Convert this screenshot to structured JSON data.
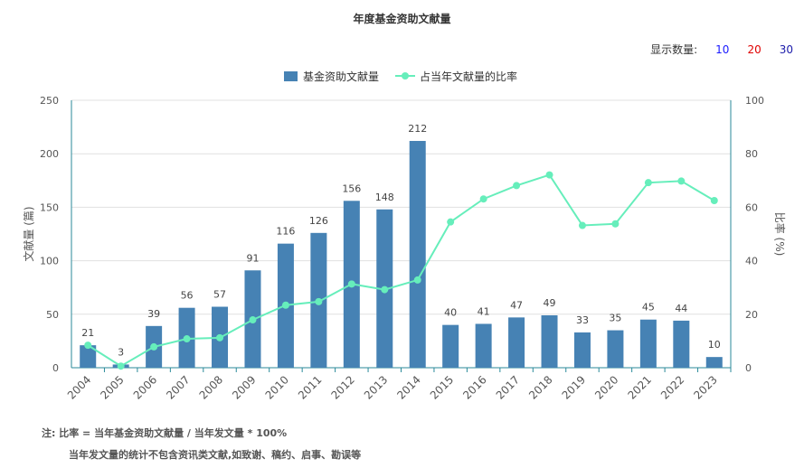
{
  "page_title": "年度基金资助文献量",
  "count_selector": {
    "label": "显示数量:",
    "options": [
      {
        "label": "10",
        "color": "#1a1aff"
      },
      {
        "label": "20",
        "color": "#e00000"
      },
      {
        "label": "30",
        "color": "#1a1aaa"
      }
    ]
  },
  "notes": {
    "line1": "注:  比率 = 当年基金资助文献量 / 当年发文量 * 100%",
    "line2": "当年发文量的统计不包含资讯类文献,如致谢、稿约、启事、勘误等"
  },
  "chart_data": {
    "type": "bar",
    "title": "年度基金资助文献量",
    "categories": [
      "2004",
      "2005",
      "2006",
      "2007",
      "2008",
      "2009",
      "2010",
      "2011",
      "2012",
      "2013",
      "2014",
      "2015",
      "2016",
      "2017",
      "2018",
      "2019",
      "2020",
      "2021",
      "2022",
      "2023"
    ],
    "series": [
      {
        "name": "基金资助文献量",
        "type": "bar",
        "axis": "left",
        "color": "#4682b4",
        "values": [
          21,
          3,
          39,
          56,
          57,
          91,
          116,
          126,
          156,
          148,
          212,
          40,
          41,
          47,
          49,
          33,
          35,
          45,
          44,
          10
        ],
        "labels": [
          "21",
          "3",
          "39",
          "56",
          "57",
          "91",
          "116",
          "126",
          "156",
          "148",
          "212",
          "40",
          "41",
          "47",
          "49",
          "33",
          "35",
          "45",
          "44",
          "10"
        ]
      },
      {
        "name": "占当年文献量的比率",
        "type": "line",
        "axis": "right",
        "color": "#66eebb",
        "values": [
          8.4,
          0.6,
          7.8,
          10.8,
          11.2,
          17.9,
          23.4,
          24.7,
          31.3,
          29.2,
          32.8,
          54.5,
          63.1,
          68.1,
          72.1,
          53.2,
          53.8,
          69.2,
          69.8,
          62.5
        ]
      }
    ],
    "ylabel": "文献量 (篇)",
    "ylim": [
      0,
      250
    ],
    "yticks": [
      "0",
      "50",
      "100",
      "150",
      "200",
      "250"
    ],
    "y2label": "比率 (%)",
    "y2lim": [
      0,
      100
    ],
    "y2ticks": [
      "0",
      "20",
      "40",
      "60",
      "80",
      "100"
    ],
    "grid": true,
    "legend_position": "top-center"
  }
}
